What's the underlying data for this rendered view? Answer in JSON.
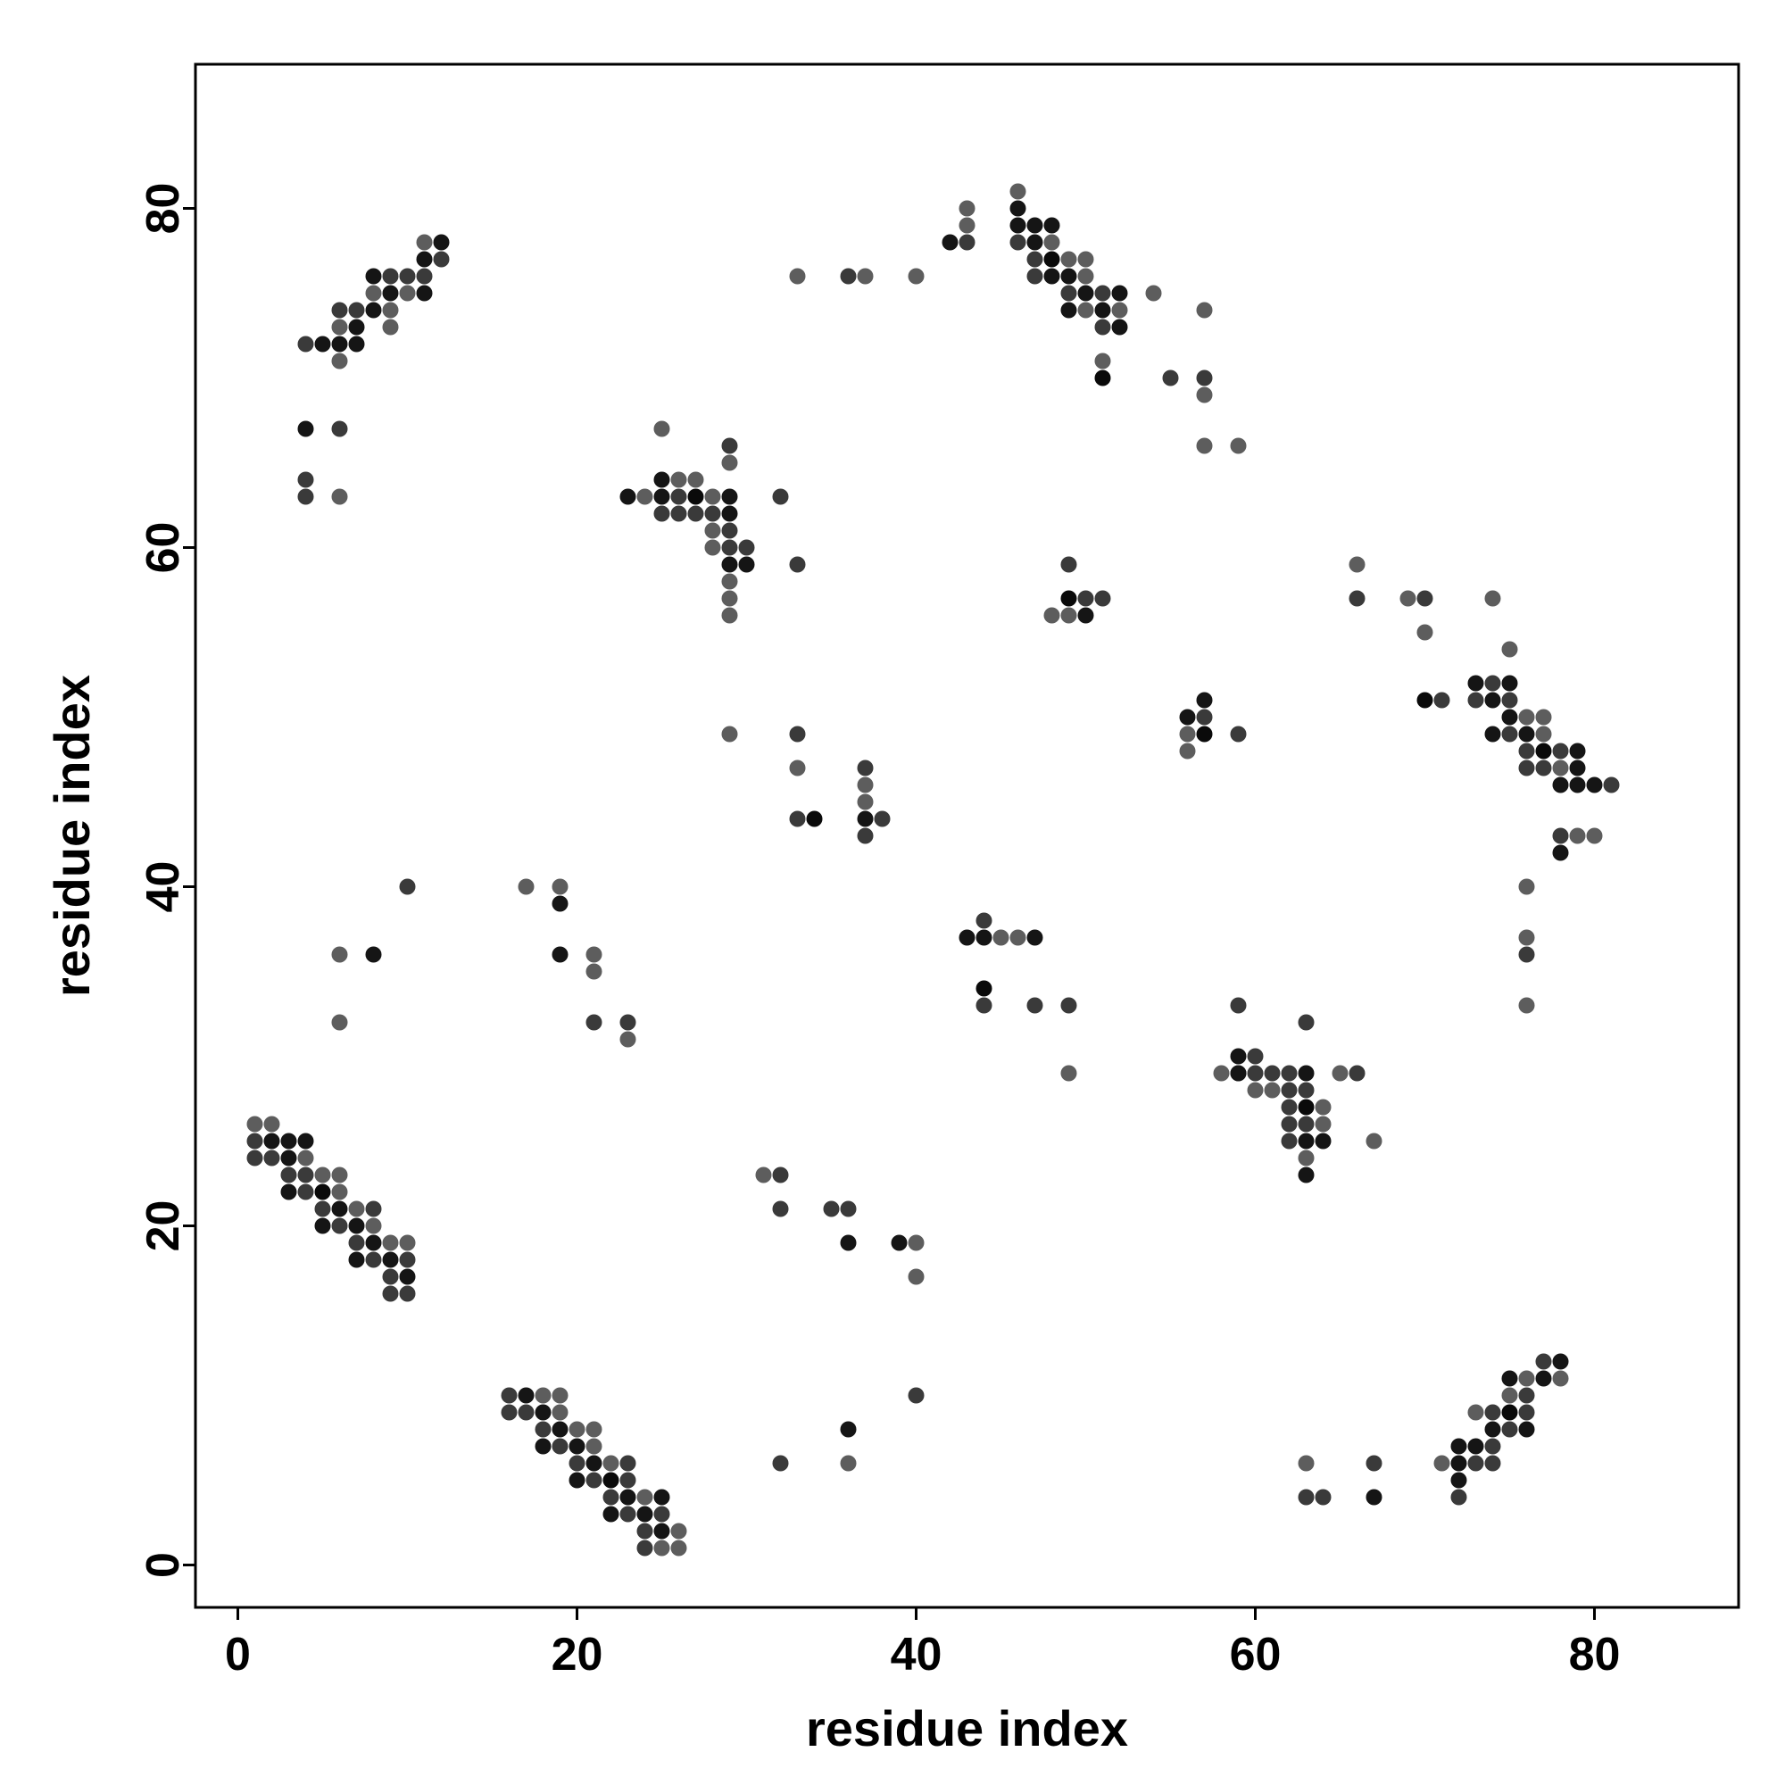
{
  "chart_data": {
    "type": "scatter",
    "title": "",
    "xlabel": "residue index",
    "ylabel": "residue index",
    "xlim": [
      -2.5,
      88.5
    ],
    "ylim": [
      -2.5,
      88.5
    ],
    "xticks": [
      0,
      20,
      40,
      60,
      80
    ],
    "yticks": [
      0,
      20,
      40,
      60,
      80
    ],
    "grid": false,
    "legend": "none",
    "point_color_scale": [
      "#cfcfcf",
      "#000000"
    ],
    "points": [
      [
        1,
        24,
        0.72
      ],
      [
        1,
        25,
        0.72
      ],
      [
        1,
        26,
        0.55
      ],
      [
        2,
        24,
        0.72
      ],
      [
        2,
        25,
        0.9
      ],
      [
        2,
        26,
        0.55
      ],
      [
        3,
        22,
        0.9
      ],
      [
        3,
        23,
        0.72
      ],
      [
        3,
        24,
        0.9
      ],
      [
        3,
        25,
        0.9
      ],
      [
        4,
        22,
        0.72
      ],
      [
        4,
        23,
        0.72
      ],
      [
        4,
        24,
        0.55
      ],
      [
        4,
        25,
        0.9
      ],
      [
        5,
        20,
        0.9
      ],
      [
        5,
        21,
        0.72
      ],
      [
        5,
        22,
        0.95
      ],
      [
        5,
        23,
        0.55
      ],
      [
        6,
        20,
        0.72
      ],
      [
        6,
        21,
        0.9
      ],
      [
        6,
        22,
        0.55
      ],
      [
        6,
        23,
        0.55
      ],
      [
        7,
        18,
        0.9
      ],
      [
        7,
        19,
        0.72
      ],
      [
        7,
        20,
        0.9
      ],
      [
        7,
        21,
        0.55
      ],
      [
        8,
        18,
        0.72
      ],
      [
        8,
        19,
        0.9
      ],
      [
        8,
        20,
        0.55
      ],
      [
        8,
        21,
        0.72
      ],
      [
        9,
        16,
        0.72
      ],
      [
        9,
        17,
        0.72
      ],
      [
        9,
        18,
        0.9
      ],
      [
        9,
        19,
        0.55
      ],
      [
        10,
        16,
        0.72
      ],
      [
        10,
        17,
        0.9
      ],
      [
        10,
        18,
        0.72
      ],
      [
        10,
        19,
        0.55
      ],
      [
        4,
        72,
        0.72
      ],
      [
        5,
        72,
        0.9
      ],
      [
        6,
        71,
        0.55
      ],
      [
        6,
        72,
        0.9
      ],
      [
        6,
        73,
        0.55
      ],
      [
        6,
        74,
        0.72
      ],
      [
        7,
        72,
        0.9
      ],
      [
        7,
        73,
        0.9
      ],
      [
        7,
        74,
        0.72
      ],
      [
        8,
        74,
        0.9
      ],
      [
        8,
        75,
        0.55
      ],
      [
        8,
        76,
        0.9
      ],
      [
        9,
        73,
        0.55
      ],
      [
        9,
        74,
        0.55
      ],
      [
        9,
        75,
        0.9
      ],
      [
        9,
        76,
        0.72
      ],
      [
        10,
        75,
        0.55
      ],
      [
        10,
        76,
        0.72
      ],
      [
        11,
        75,
        0.9
      ],
      [
        11,
        76,
        0.72
      ],
      [
        11,
        77,
        0.9
      ],
      [
        11,
        78,
        0.55
      ],
      [
        12,
        77,
        0.72
      ],
      [
        12,
        78,
        0.9
      ],
      [
        4,
        67,
        0.9
      ],
      [
        4,
        64,
        0.72
      ],
      [
        4,
        63,
        0.72
      ],
      [
        6,
        67,
        0.72
      ],
      [
        6,
        63,
        0.55
      ],
      [
        6,
        36,
        0.55
      ],
      [
        8,
        36,
        0.9
      ],
      [
        10,
        40,
        0.72
      ],
      [
        6,
        32,
        0.55
      ],
      [
        16,
        9,
        0.72
      ],
      [
        16,
        10,
        0.72
      ],
      [
        17,
        9,
        0.72
      ],
      [
        17,
        10,
        0.9
      ],
      [
        18,
        7,
        0.9
      ],
      [
        18,
        8,
        0.72
      ],
      [
        18,
        9,
        0.9
      ],
      [
        18,
        10,
        0.55
      ],
      [
        19,
        7,
        0.72
      ],
      [
        19,
        8,
        0.9
      ],
      [
        19,
        9,
        0.55
      ],
      [
        19,
        10,
        0.55
      ],
      [
        20,
        5,
        0.9
      ],
      [
        20,
        6,
        0.72
      ],
      [
        20,
        7,
        0.9
      ],
      [
        20,
        8,
        0.55
      ],
      [
        21,
        5,
        0.72
      ],
      [
        21,
        6,
        0.9
      ],
      [
        21,
        7,
        0.55
      ],
      [
        21,
        8,
        0.55
      ],
      [
        22,
        3,
        0.9
      ],
      [
        22,
        4,
        0.72
      ],
      [
        22,
        5,
        0.95
      ],
      [
        22,
        6,
        0.55
      ],
      [
        23,
        3,
        0.72
      ],
      [
        23,
        4,
        0.9
      ],
      [
        23,
        5,
        0.72
      ],
      [
        23,
        6,
        0.72
      ],
      [
        24,
        1,
        0.72
      ],
      [
        24,
        2,
        0.72
      ],
      [
        24,
        3,
        0.9
      ],
      [
        24,
        4,
        0.55
      ],
      [
        25,
        1,
        0.55
      ],
      [
        25,
        2,
        0.9
      ],
      [
        25,
        3,
        0.72
      ],
      [
        25,
        4,
        0.9
      ],
      [
        26,
        1,
        0.55
      ],
      [
        26,
        2,
        0.55
      ],
      [
        17,
        40,
        0.55
      ],
      [
        19,
        40,
        0.55
      ],
      [
        19,
        39,
        0.9
      ],
      [
        19,
        36,
        0.9
      ],
      [
        21,
        36,
        0.55
      ],
      [
        21,
        35,
        0.55
      ],
      [
        21,
        32,
        0.72
      ],
      [
        23,
        32,
        0.72
      ],
      [
        23,
        31,
        0.55
      ],
      [
        23,
        63,
        0.9
      ],
      [
        24,
        63,
        0.55
      ],
      [
        25,
        62,
        0.72
      ],
      [
        25,
        63,
        0.9
      ],
      [
        25,
        64,
        0.9
      ],
      [
        25,
        67,
        0.55
      ],
      [
        26,
        62,
        0.72
      ],
      [
        26,
        63,
        0.72
      ],
      [
        26,
        64,
        0.55
      ],
      [
        27,
        62,
        0.72
      ],
      [
        27,
        63,
        0.95
      ],
      [
        27,
        64,
        0.55
      ],
      [
        28,
        60,
        0.55
      ],
      [
        28,
        61,
        0.55
      ],
      [
        28,
        62,
        0.72
      ],
      [
        28,
        63,
        0.55
      ],
      [
        29,
        56,
        0.55
      ],
      [
        29,
        57,
        0.55
      ],
      [
        29,
        58,
        0.55
      ],
      [
        29,
        59,
        0.9
      ],
      [
        29,
        60,
        0.72
      ],
      [
        29,
        61,
        0.72
      ],
      [
        29,
        62,
        0.9
      ],
      [
        29,
        63,
        0.9
      ],
      [
        29,
        65,
        0.55
      ],
      [
        29,
        66,
        0.72
      ],
      [
        30,
        59,
        0.9
      ],
      [
        30,
        60,
        0.72
      ],
      [
        32,
        63,
        0.72
      ],
      [
        33,
        59,
        0.72
      ],
      [
        29,
        49,
        0.55
      ],
      [
        33,
        49,
        0.72
      ],
      [
        33,
        47,
        0.55
      ],
      [
        33,
        44,
        0.72
      ],
      [
        34,
        44,
        0.95
      ],
      [
        37,
        47,
        0.72
      ],
      [
        37,
        46,
        0.55
      ],
      [
        37,
        45,
        0.55
      ],
      [
        37,
        44,
        0.9
      ],
      [
        37,
        43,
        0.72
      ],
      [
        38,
        44,
        0.72
      ],
      [
        31,
        23,
        0.55
      ],
      [
        32,
        23,
        0.72
      ],
      [
        32,
        21,
        0.72
      ],
      [
        32,
        6,
        0.72
      ],
      [
        35,
        21,
        0.72
      ],
      [
        36,
        21,
        0.72
      ],
      [
        36,
        19,
        0.9
      ],
      [
        36,
        8,
        0.9
      ],
      [
        36,
        6,
        0.55
      ],
      [
        39,
        19,
        0.9
      ],
      [
        40,
        19,
        0.55
      ],
      [
        40,
        17,
        0.55
      ],
      [
        40,
        10,
        0.72
      ],
      [
        33,
        76,
        0.55
      ],
      [
        36,
        76,
        0.72
      ],
      [
        37,
        76,
        0.55
      ],
      [
        40,
        76,
        0.55
      ],
      [
        42,
        78,
        0.9
      ],
      [
        43,
        78,
        0.72
      ],
      [
        43,
        79,
        0.55
      ],
      [
        43,
        80,
        0.55
      ],
      [
        46,
        78,
        0.72
      ],
      [
        46,
        79,
        0.9
      ],
      [
        46,
        80,
        0.9
      ],
      [
        46,
        81,
        0.55
      ],
      [
        47,
        76,
        0.72
      ],
      [
        47,
        77,
        0.72
      ],
      [
        47,
        78,
        0.9
      ],
      [
        47,
        79,
        0.9
      ],
      [
        48,
        76,
        0.9
      ],
      [
        48,
        77,
        0.95
      ],
      [
        48,
        78,
        0.55
      ],
      [
        48,
        79,
        0.9
      ],
      [
        49,
        74,
        0.9
      ],
      [
        49,
        75,
        0.72
      ],
      [
        49,
        76,
        0.9
      ],
      [
        49,
        77,
        0.55
      ],
      [
        50,
        74,
        0.55
      ],
      [
        50,
        75,
        0.9
      ],
      [
        50,
        76,
        0.55
      ],
      [
        50,
        77,
        0.55
      ],
      [
        51,
        73,
        0.72
      ],
      [
        51,
        74,
        0.9
      ],
      [
        51,
        75,
        0.72
      ],
      [
        52,
        73,
        0.9
      ],
      [
        52,
        74,
        0.55
      ],
      [
        52,
        75,
        0.9
      ],
      [
        54,
        75,
        0.55
      ],
      [
        51,
        71,
        0.55
      ],
      [
        51,
        70,
        0.95
      ],
      [
        55,
        70,
        0.72
      ],
      [
        57,
        74,
        0.55
      ],
      [
        57,
        70,
        0.72
      ],
      [
        57,
        69,
        0.55
      ],
      [
        57,
        66,
        0.55
      ],
      [
        59,
        66,
        0.55
      ],
      [
        43,
        37,
        0.9
      ],
      [
        44,
        37,
        0.9
      ],
      [
        44,
        38,
        0.72
      ],
      [
        45,
        37,
        0.55
      ],
      [
        46,
        37,
        0.55
      ],
      [
        47,
        37,
        0.9
      ],
      [
        44,
        34,
        0.95
      ],
      [
        44,
        33,
        0.72
      ],
      [
        47,
        33,
        0.72
      ],
      [
        49,
        33,
        0.72
      ],
      [
        49,
        29,
        0.55
      ],
      [
        48,
        56,
        0.55
      ],
      [
        49,
        56,
        0.55
      ],
      [
        49,
        57,
        0.95
      ],
      [
        49,
        59,
        0.72
      ],
      [
        50,
        56,
        0.9
      ],
      [
        50,
        57,
        0.72
      ],
      [
        51,
        57,
        0.72
      ],
      [
        56,
        48,
        0.55
      ],
      [
        56,
        49,
        0.55
      ],
      [
        56,
        50,
        0.9
      ],
      [
        57,
        49,
        0.95
      ],
      [
        57,
        50,
        0.72
      ],
      [
        57,
        51,
        0.9
      ],
      [
        59,
        49,
        0.72
      ],
      [
        58,
        29,
        0.55
      ],
      [
        59,
        29,
        0.55
      ],
      [
        59,
        30,
        0.9
      ],
      [
        59,
        29,
        0.9
      ],
      [
        60,
        28,
        0.55
      ],
      [
        60,
        29,
        0.72
      ],
      [
        60,
        30,
        0.72
      ],
      [
        61,
        28,
        0.55
      ],
      [
        61,
        29,
        0.72
      ],
      [
        62,
        25,
        0.72
      ],
      [
        62,
        26,
        0.72
      ],
      [
        62,
        27,
        0.72
      ],
      [
        62,
        28,
        0.72
      ],
      [
        62,
        29,
        0.72
      ],
      [
        63,
        23,
        0.9
      ],
      [
        63,
        24,
        0.55
      ],
      [
        63,
        25,
        0.9
      ],
      [
        63,
        26,
        0.72
      ],
      [
        63,
        27,
        0.95
      ],
      [
        63,
        28,
        0.72
      ],
      [
        63,
        29,
        0.9
      ],
      [
        63,
        32,
        0.72
      ],
      [
        64,
        25,
        0.9
      ],
      [
        64,
        26,
        0.55
      ],
      [
        64,
        27,
        0.55
      ],
      [
        65,
        29,
        0.55
      ],
      [
        66,
        29,
        0.72
      ],
      [
        67,
        25,
        0.55
      ],
      [
        59,
        33,
        0.72
      ],
      [
        63,
        6,
        0.55
      ],
      [
        63,
        4,
        0.72
      ],
      [
        64,
        4,
        0.72
      ],
      [
        67,
        6,
        0.72
      ],
      [
        67,
        4,
        0.9
      ],
      [
        71,
        6,
        0.55
      ],
      [
        72,
        4,
        0.72
      ],
      [
        72,
        5,
        0.9
      ],
      [
        72,
        6,
        0.9
      ],
      [
        72,
        7,
        0.9
      ],
      [
        73,
        6,
        0.72
      ],
      [
        73,
        7,
        0.9
      ],
      [
        73,
        9,
        0.55
      ],
      [
        74,
        6,
        0.72
      ],
      [
        74,
        7,
        0.72
      ],
      [
        74,
        8,
        0.9
      ],
      [
        74,
        9,
        0.72
      ],
      [
        75,
        8,
        0.72
      ],
      [
        75,
        9,
        0.95
      ],
      [
        75,
        10,
        0.55
      ],
      [
        75,
        11,
        0.9
      ],
      [
        76,
        8,
        0.9
      ],
      [
        76,
        9,
        0.72
      ],
      [
        76,
        10,
        0.72
      ],
      [
        76,
        11,
        0.55
      ],
      [
        77,
        11,
        0.9
      ],
      [
        77,
        12,
        0.72
      ],
      [
        78,
        11,
        0.55
      ],
      [
        78,
        12,
        0.9
      ],
      [
        66,
        59,
        0.55
      ],
      [
        66,
        57,
        0.72
      ],
      [
        69,
        57,
        0.55
      ],
      [
        70,
        57,
        0.72
      ],
      [
        70,
        55,
        0.55
      ],
      [
        70,
        51,
        0.95
      ],
      [
        71,
        51,
        0.72
      ],
      [
        73,
        51,
        0.72
      ],
      [
        73,
        52,
        0.9
      ],
      [
        74,
        49,
        0.9
      ],
      [
        74,
        51,
        0.9
      ],
      [
        74,
        52,
        0.72
      ],
      [
        74,
        57,
        0.55
      ],
      [
        75,
        49,
        0.72
      ],
      [
        75,
        50,
        0.9
      ],
      [
        75,
        51,
        0.72
      ],
      [
        75,
        52,
        0.9
      ],
      [
        75,
        54,
        0.55
      ],
      [
        76,
        47,
        0.72
      ],
      [
        76,
        48,
        0.72
      ],
      [
        76,
        49,
        0.9
      ],
      [
        76,
        50,
        0.55
      ],
      [
        77,
        47,
        0.72
      ],
      [
        77,
        48,
        0.95
      ],
      [
        77,
        49,
        0.55
      ],
      [
        77,
        50,
        0.55
      ],
      [
        78,
        46,
        0.9
      ],
      [
        78,
        47,
        0.55
      ],
      [
        78,
        48,
        0.72
      ],
      [
        79,
        46,
        0.9
      ],
      [
        79,
        47,
        0.9
      ],
      [
        79,
        48,
        0.9
      ],
      [
        80,
        46,
        0.9
      ],
      [
        81,
        46,
        0.72
      ],
      [
        78,
        43,
        0.72
      ],
      [
        78,
        42,
        0.9
      ],
      [
        79,
        43,
        0.55
      ],
      [
        80,
        43,
        0.55
      ],
      [
        76,
        40,
        0.55
      ],
      [
        76,
        37,
        0.55
      ],
      [
        76,
        36,
        0.72
      ],
      [
        76,
        33,
        0.55
      ]
    ]
  }
}
